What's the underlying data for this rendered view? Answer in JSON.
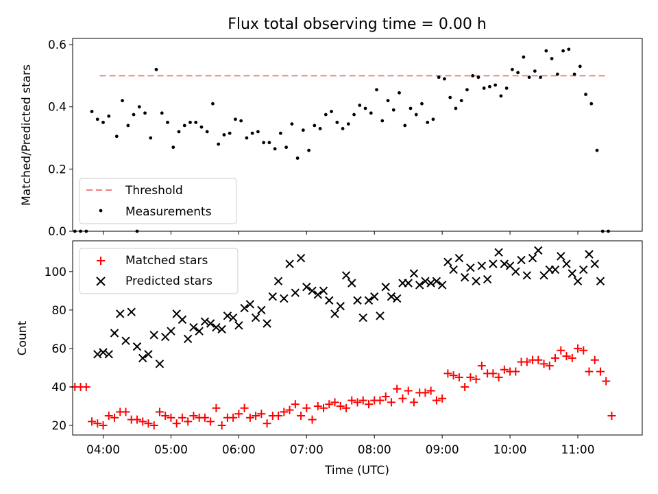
{
  "chart_data": [
    {
      "type": "scatter",
      "title": "Flux total observing time = 0.00 h",
      "xlabel": "",
      "ylabel": "Matched/Predicted stars",
      "xlim": [
        "03:33",
        "11:57"
      ],
      "ylim": [
        0,
        0.62
      ],
      "yticks": [
        0.0,
        0.2,
        0.4,
        0.6
      ],
      "ytick_labels": [
        "0.0",
        "0.2",
        "0.4",
        "0.6"
      ],
      "x_ticks_labels_shown": false,
      "grid": false,
      "legend": "lower-left",
      "colors": {
        "threshold": "#f08080",
        "measurements": "#000000"
      },
      "threshold": {
        "name": "Threshold",
        "y": 0.5,
        "x_range": [
          "03:57",
          "11:27"
        ]
      },
      "series": [
        {
          "name": "Measurements",
          "x": [
            "03:50",
            "03:55",
            "04:00",
            "04:05",
            "04:12",
            "04:17",
            "04:22",
            "04:27",
            "04:32",
            "04:37",
            "04:42",
            "04:47",
            "04:52",
            "04:57",
            "05:02",
            "05:07",
            "05:12",
            "05:17",
            "05:22",
            "05:27",
            "05:32",
            "05:37",
            "05:42",
            "05:47",
            "05:52",
            "05:57",
            "06:02",
            "06:07",
            "06:12",
            "06:17",
            "06:22",
            "06:27",
            "06:32",
            "06:37",
            "06:42",
            "06:47",
            "06:52",
            "06:57",
            "07:02",
            "07:07",
            "07:12",
            "07:17",
            "07:22",
            "07:27",
            "07:32",
            "07:37",
            "07:42",
            "07:47",
            "07:52",
            "07:57",
            "08:02",
            "08:07",
            "08:12",
            "08:17",
            "08:22",
            "08:27",
            "08:32",
            "08:37",
            "08:42",
            "08:47",
            "08:52",
            "08:57",
            "09:02",
            "09:07",
            "09:12",
            "09:17",
            "09:22",
            "09:27",
            "09:32",
            "09:37",
            "09:42",
            "09:47",
            "09:52",
            "09:57",
            "10:02",
            "10:07",
            "10:12",
            "10:17",
            "10:22",
            "10:27",
            "10:32",
            "10:37",
            "10:42",
            "10:47",
            "10:52",
            "10:57",
            "11:02",
            "11:07",
            "11:12",
            "11:17"
          ],
          "y": [
            0.385,
            0.36,
            0.35,
            0.37,
            0.305,
            0.42,
            0.34,
            0.375,
            0.4,
            0.38,
            0.3,
            0.52,
            0.38,
            0.35,
            0.27,
            0.32,
            0.34,
            0.35,
            0.35,
            0.335,
            0.32,
            0.41,
            0.28,
            0.31,
            0.315,
            0.36,
            0.355,
            0.3,
            0.315,
            0.32,
            0.285,
            0.285,
            0.265,
            0.315,
            0.27,
            0.345,
            0.235,
            0.325,
            0.26,
            0.34,
            0.33,
            0.375,
            0.385,
            0.35,
            0.33,
            0.345,
            0.375,
            0.405,
            0.395,
            0.38,
            0.455,
            0.355,
            0.42,
            0.39,
            0.445,
            0.34,
            0.395,
            0.375,
            0.41,
            0.35,
            0.36,
            0.495,
            0.49,
            0.43,
            0.395,
            0.42,
            0.455,
            0.5,
            0.495,
            0.46,
            0.465,
            0.47,
            0.435,
            0.46,
            0.52,
            0.51,
            0.56,
            0.495,
            0.515,
            0.495,
            0.58,
            0.555,
            0.505,
            0.58,
            0.585,
            0.505,
            0.53,
            0.44,
            0.41,
            0.26
          ]
        },
        {
          "name": "",
          "x": [
            "03:35",
            "03:40",
            "03:45",
            "04:30",
            "11:22",
            "11:27"
          ],
          "y": [
            0,
            0,
            0,
            0,
            0,
            0
          ]
        }
      ]
    },
    {
      "type": "scatter",
      "title": "",
      "xlabel": "Time (UTC)",
      "ylabel": "Count",
      "xlim": [
        "03:33",
        "11:57"
      ],
      "ylim": [
        15,
        116
      ],
      "yticks": [
        20,
        40,
        60,
        80,
        100
      ],
      "ytick_labels": [
        "20",
        "40",
        "60",
        "80",
        "100"
      ],
      "xticks": [
        "04:00",
        "05:00",
        "06:00",
        "07:00",
        "08:00",
        "09:00",
        "10:00",
        "11:00"
      ],
      "xtick_labels": [
        "04:00",
        "05:00",
        "06:00",
        "07:00",
        "08:00",
        "09:00",
        "10:00",
        "11:00"
      ],
      "grid": false,
      "legend": "top-left",
      "colors": {
        "matched": "#ff0000",
        "predicted": "#000000"
      },
      "series": [
        {
          "name": "Matched stars",
          "marker": "plus",
          "x": [
            "03:35",
            "03:40",
            "03:45",
            "03:50",
            "03:55",
            "04:00",
            "04:05",
            "04:10",
            "04:15",
            "04:20",
            "04:25",
            "04:30",
            "04:35",
            "04:40",
            "04:45",
            "04:50",
            "04:55",
            "05:00",
            "05:05",
            "05:10",
            "05:15",
            "05:20",
            "05:25",
            "05:30",
            "05:35",
            "05:40",
            "05:45",
            "05:50",
            "05:55",
            "06:00",
            "06:05",
            "06:10",
            "06:15",
            "06:20",
            "06:25",
            "06:30",
            "06:35",
            "06:40",
            "06:45",
            "06:50",
            "06:55",
            "07:00",
            "07:05",
            "07:10",
            "07:15",
            "07:20",
            "07:25",
            "07:30",
            "07:35",
            "07:40",
            "07:45",
            "07:50",
            "07:55",
            "08:00",
            "08:05",
            "08:10",
            "08:15",
            "08:20",
            "08:25",
            "08:30",
            "08:35",
            "08:40",
            "08:45",
            "08:50",
            "08:55",
            "09:00",
            "09:05",
            "09:10",
            "09:15",
            "09:20",
            "09:25",
            "09:30",
            "09:35",
            "09:40",
            "09:45",
            "09:50",
            "09:55",
            "10:00",
            "10:05",
            "10:10",
            "10:15",
            "10:20",
            "10:25",
            "10:30",
            "10:35",
            "10:40",
            "10:45",
            "10:50",
            "10:55",
            "11:00",
            "11:05",
            "11:10",
            "11:15",
            "11:20",
            "11:25",
            "11:30"
          ],
          "y": [
            40,
            40,
            40,
            22,
            21,
            20,
            25,
            24,
            27,
            27,
            23,
            23,
            22,
            21,
            20,
            27,
            25,
            24,
            21,
            24,
            22,
            25,
            24,
            24,
            22,
            29,
            20,
            24,
            24,
            26,
            29,
            24,
            25,
            26,
            21,
            25,
            25,
            27,
            28,
            31,
            25,
            29,
            23,
            30,
            29,
            31,
            32,
            30,
            29,
            33,
            32,
            33,
            31,
            33,
            33,
            35,
            32,
            39,
            34,
            38,
            32,
            37,
            37,
            38,
            33,
            34,
            47,
            46,
            45,
            40,
            45,
            44,
            51,
            47,
            47,
            45,
            49,
            48,
            48,
            53,
            53,
            54,
            54,
            52,
            51,
            55,
            59,
            56,
            55,
            60,
            59,
            48,
            54,
            48,
            43,
            25
          ]
        },
        {
          "name": "Predicted stars",
          "marker": "x",
          "x": [
            "03:55",
            "04:00",
            "04:05",
            "04:10",
            "04:15",
            "04:20",
            "04:25",
            "04:30",
            "04:35",
            "04:40",
            "04:45",
            "04:50",
            "04:55",
            "05:00",
            "05:05",
            "05:10",
            "05:15",
            "05:20",
            "05:25",
            "05:30",
            "05:35",
            "05:40",
            "05:45",
            "05:50",
            "05:55",
            "06:00",
            "06:05",
            "06:10",
            "06:15",
            "06:20",
            "06:25",
            "06:30",
            "06:35",
            "06:40",
            "06:45",
            "06:50",
            "06:55",
            "07:00",
            "07:05",
            "07:10",
            "07:15",
            "07:20",
            "07:25",
            "07:30",
            "07:35",
            "07:40",
            "07:45",
            "07:50",
            "07:55",
            "08:00",
            "08:05",
            "08:10",
            "08:15",
            "08:20",
            "08:25",
            "08:30",
            "08:35",
            "08:40",
            "08:45",
            "08:50",
            "08:55",
            "09:00",
            "09:05",
            "09:10",
            "09:15",
            "09:20",
            "09:25",
            "09:30",
            "09:35",
            "09:40",
            "09:45",
            "09:50",
            "09:55",
            "10:00",
            "10:05",
            "10:10",
            "10:15",
            "10:20",
            "10:25",
            "10:30",
            "10:35",
            "10:40",
            "10:45",
            "10:50",
            "10:55",
            "11:00",
            "11:05",
            "11:10",
            "11:15",
            "11:20"
          ],
          "y": [
            57,
            58,
            57,
            68,
            78,
            64,
            79,
            61,
            55,
            57,
            67,
            52,
            66,
            69,
            78,
            75,
            65,
            71,
            69,
            74,
            73,
            71,
            70,
            77,
            76,
            72,
            81,
            83,
            76,
            80,
            73,
            87,
            95,
            86,
            104,
            89,
            107,
            92,
            90,
            88,
            90,
            85,
            78,
            82,
            98,
            94,
            85,
            76,
            85,
            87,
            77,
            92,
            87,
            86,
            94,
            94,
            99,
            93,
            95,
            94,
            95,
            93,
            105,
            101,
            107,
            97,
            102,
            95,
            103,
            96,
            104,
            110,
            104,
            103,
            100,
            106,
            98,
            107,
            111,
            98,
            101,
            101,
            108,
            104,
            99,
            95,
            101,
            109,
            104,
            95
          ]
        }
      ]
    }
  ]
}
